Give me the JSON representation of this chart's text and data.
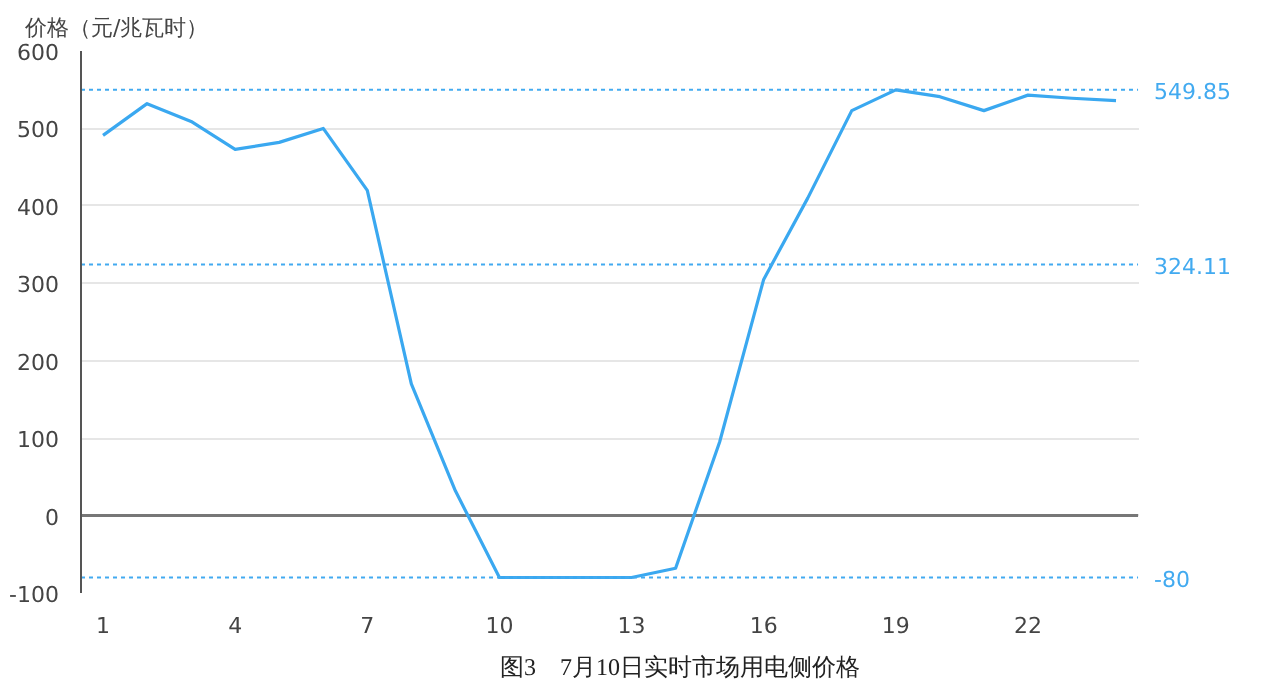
{
  "chart_data": {
    "type": "line",
    "ylabel": "价格（元/兆瓦时）",
    "categories": [
      "1",
      null,
      null,
      "4",
      null,
      null,
      "7",
      null,
      null,
      "10",
      null,
      null,
      "13",
      null,
      null,
      "16",
      null,
      null,
      "19",
      null,
      null,
      "22",
      null,
      null
    ],
    "series": [
      {
        "color": "#3aa8f0",
        "values": [
          491,
          532,
          509,
          473,
          482,
          500,
          420,
          170,
          32,
          -80,
          -80,
          -80,
          -80,
          -68,
          95,
          305,
          410,
          523,
          549.85,
          541,
          523,
          543,
          539,
          536
        ]
      }
    ],
    "ylim": [
      -100,
      600
    ],
    "yticks": [
      -100,
      0,
      100,
      200,
      300,
      400,
      500,
      600
    ],
    "grid": "y",
    "marker": "none",
    "line_style": "solid",
    "ref_lines": [
      {
        "axis": "y",
        "value": 549.85,
        "label": "549.85",
        "color": "#42aaf0",
        "line_style": "dotted"
      },
      {
        "axis": "y",
        "value": 324.11,
        "label": "324.11",
        "color": "#42aaf0",
        "line_style": "dotted"
      },
      {
        "axis": "y",
        "value": -80,
        "label": "-80",
        "color": "#42aaf0",
        "line_style": "dotted"
      }
    ],
    "annotations": [
      "图3　7月10日实时市场用电侧价格"
    ]
  }
}
